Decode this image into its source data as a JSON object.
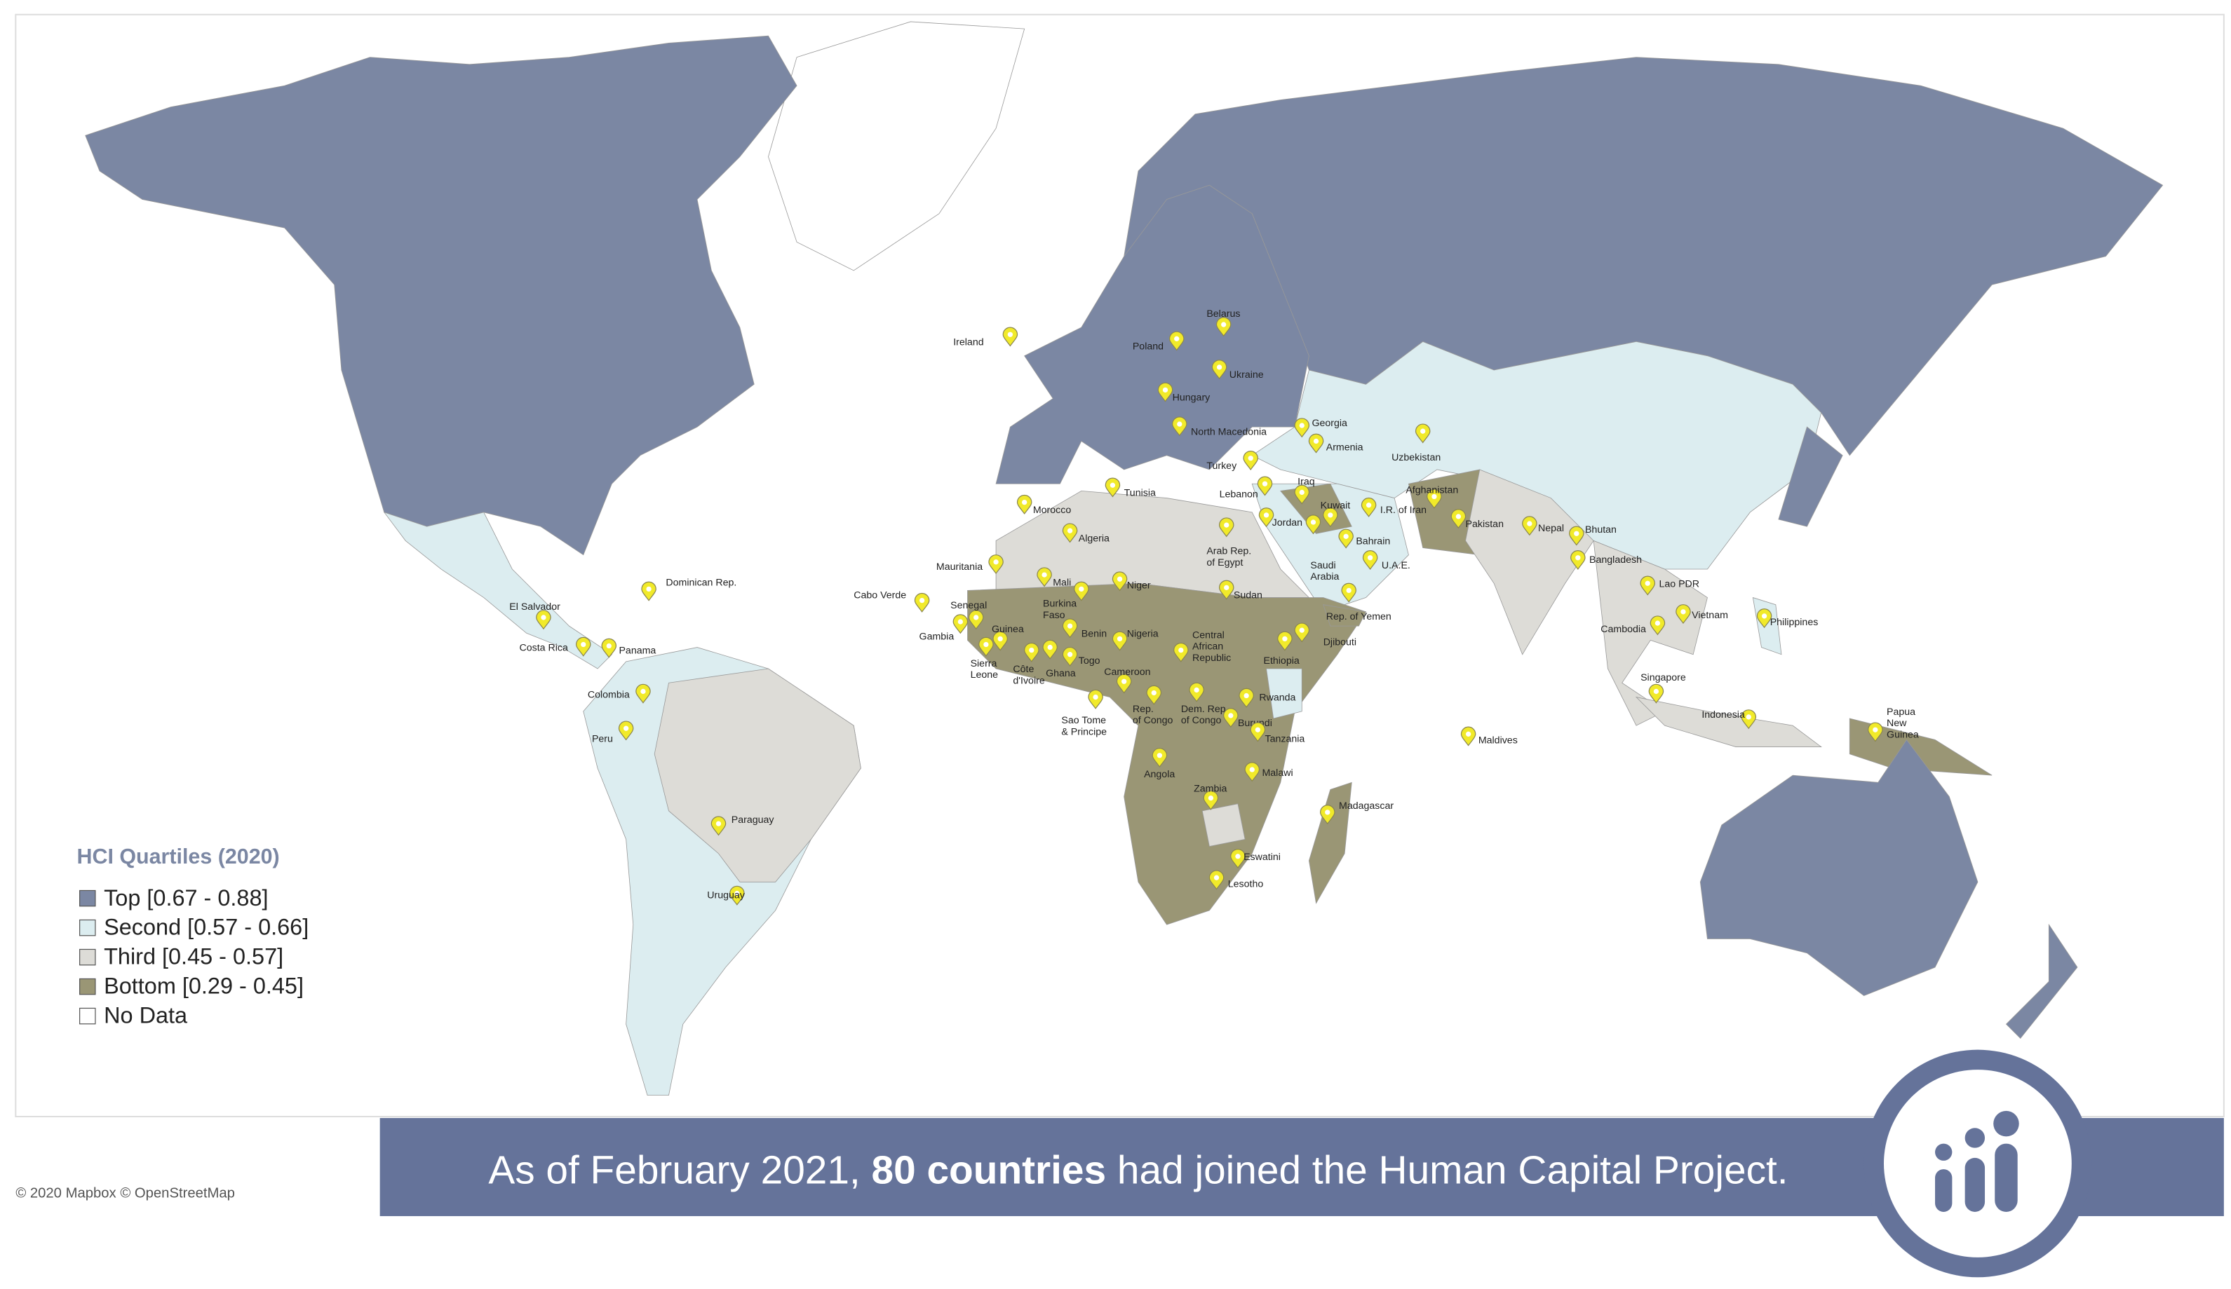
{
  "legend": {
    "title": "HCI Quartiles (2020)",
    "items": [
      {
        "label": "Top [0.67 - 0.88]",
        "color": "#7b87a3"
      },
      {
        "label": "Second [0.57 - 0.66]",
        "color": "#dcedf0"
      },
      {
        "label": "Third [0.45 - 0.57]",
        "color": "#dddcd7"
      },
      {
        "label": "Bottom [0.29 - 0.45]",
        "color": "#9a9675"
      },
      {
        "label": "No Data",
        "color": "#ffffff"
      }
    ]
  },
  "countries": [
    [
      "Ireland"
    ],
    [
      "Poland"
    ],
    [
      "Belarus"
    ],
    [
      "Ukraine"
    ],
    [
      "Hungary"
    ],
    [
      "North Macedonia"
    ],
    [
      "Georgia"
    ],
    [
      "Armenia"
    ],
    [
      "Turkey"
    ],
    [
      "Uzbekistan"
    ],
    [
      "Afghanistan"
    ],
    [
      "Iraq"
    ],
    [
      "Kuwait"
    ],
    [
      "Lebanon"
    ],
    [
      "I.R. of Iran"
    ],
    [
      "Jordan"
    ],
    [
      "Pakistan"
    ],
    [
      "Nepal"
    ],
    [
      "Bhutan"
    ],
    [
      "Bahrain"
    ],
    [
      "Saudi",
      "Arabia"
    ],
    [
      "U.A.E."
    ],
    [
      "Bangladesh"
    ],
    [
      "Arab Rep.",
      "of Egypt"
    ],
    [
      "Tunisia"
    ],
    [
      "Morocco"
    ],
    [
      "Algeria"
    ],
    [
      "Mauritania"
    ],
    [
      "Mali"
    ],
    [
      "Niger"
    ],
    [
      "Sudan"
    ],
    [
      "Rep. of Yemen"
    ],
    [
      "Djibouti"
    ],
    [
      "Ethiopia"
    ],
    [
      "Lao PDR"
    ],
    [
      "Vietnam"
    ],
    [
      "Cambodia"
    ],
    [
      "Philippines"
    ],
    [
      "Cabo Verde"
    ],
    [
      "Dominican Rep."
    ],
    [
      "El Salvador"
    ],
    [
      "Costa Rica"
    ],
    [
      "Panama"
    ],
    [
      "Colombia"
    ],
    [
      "Peru"
    ],
    [
      "Paraguay"
    ],
    [
      "Uruguay"
    ],
    [
      "Senegal"
    ],
    [
      "Gambia"
    ],
    [
      "Guinea"
    ],
    [
      "Sierra",
      "Leone"
    ],
    [
      "Côte",
      "d'Ivoire"
    ],
    [
      "Burkina",
      "Faso"
    ],
    [
      "Ghana"
    ],
    [
      "Benin"
    ],
    [
      "Togo"
    ],
    [
      "Nigeria"
    ],
    [
      "Cameroon"
    ],
    [
      "Central",
      "African",
      "Republic"
    ],
    [
      "Sao Tome",
      "& Principe"
    ],
    [
      "Rep.",
      "of Congo"
    ],
    [
      "Dem. Rep.",
      "of Congo"
    ],
    [
      "Rwanda"
    ],
    [
      "Burundi"
    ],
    [
      "Tanzania"
    ],
    [
      "Angola"
    ],
    [
      "Malawi"
    ],
    [
      "Zambia"
    ],
    [
      "Madagascar"
    ],
    [
      "Eswatini"
    ],
    [
      "Lesotho"
    ],
    [
      "Maldives"
    ],
    [
      "Singapore"
    ],
    [
      "Indonesia"
    ],
    [
      "Papua",
      "New",
      "Guinea"
    ]
  ],
  "banner": {
    "before": "As of February 2021, ",
    "emphasis": "80 countries",
    "after": " had joined the Human Capital Project."
  },
  "credit": "© 2020 Mapbox © OpenStreetMap"
}
